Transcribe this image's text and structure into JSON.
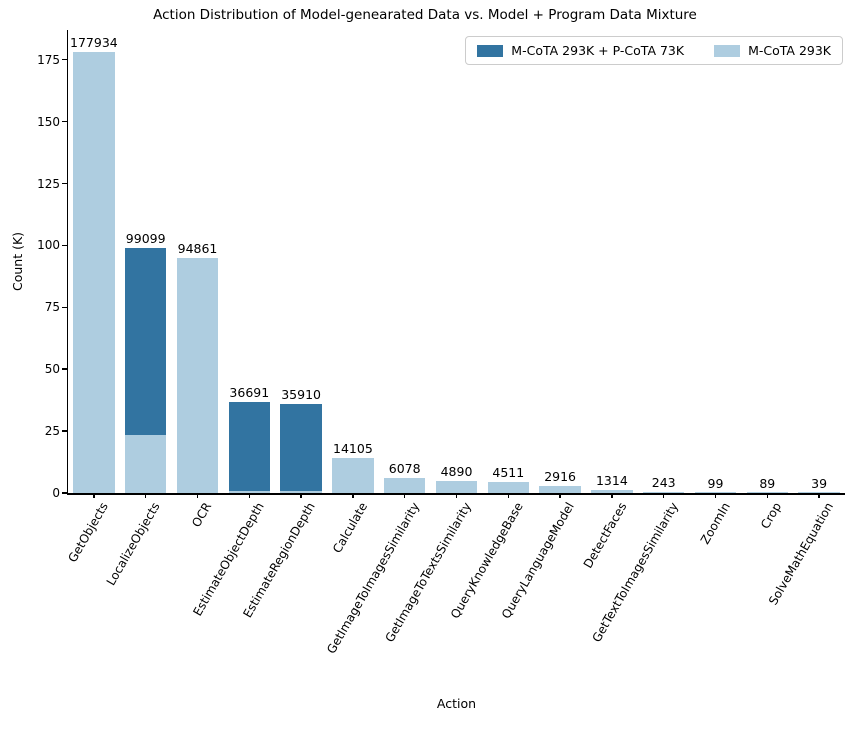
{
  "figure": {
    "title": "Action Distribution of Model-genearated Data vs. Model + Program Data Mixture",
    "xlabel": "Action",
    "ylabel": "Count (K)"
  },
  "legend": {
    "items": [
      {
        "label": "M-CoTA 293K + P-CoTA 73K",
        "color": "#3274a1"
      },
      {
        "label": "M-CoTA 293K",
        "color": "#aecde0"
      }
    ]
  },
  "chart_data": {
    "type": "bar",
    "bar_mode": "overlay",
    "title": "Action Distribution of Model-genearated Data vs. Model + Program Data Mixture",
    "xlabel": "Action",
    "ylabel": "Count (K)",
    "ylim": [
      0,
      187
    ],
    "yticks": [
      0,
      25,
      50,
      75,
      100,
      125,
      150,
      175
    ],
    "grid": false,
    "legend_position": "upper right",
    "categories": [
      "GetObjects",
      "LocalizeObjects",
      "OCR",
      "EstimateObjectDepth",
      "EstimateRegionDepth",
      "Calculate",
      "GetImageToImagesSimilarity",
      "GetImageToTextsSimilarity",
      "QueryKnowledgeBase",
      "QueryLanguageModel",
      "DetectFaces",
      "GetTextToImagesSimilarity",
      "ZoomIn",
      "Crop",
      "SolveMathEquation"
    ],
    "series": [
      {
        "name": "M-CoTA 293K + P-CoTA 73K",
        "color": "#3274a1",
        "values_k": [
          null,
          99.099,
          null,
          36.691,
          35.91,
          null,
          null,
          null,
          null,
          null,
          null,
          null,
          null,
          null,
          null
        ]
      },
      {
        "name": "M-CoTA 293K",
        "color": "#aecde0",
        "values_k": [
          177.934,
          23.3,
          94.861,
          1.0,
          0.9,
          14.105,
          6.078,
          4.89,
          4.511,
          2.916,
          1.314,
          0.243,
          0.099,
          0.089,
          0.039
        ]
      }
    ],
    "bar_labels": [
      "177934",
      "99099",
      "94861",
      "36691",
      "35910",
      "14105",
      "6078",
      "4890",
      "4511",
      "2916",
      "1314",
      "243",
      "99",
      "89",
      "39"
    ]
  }
}
